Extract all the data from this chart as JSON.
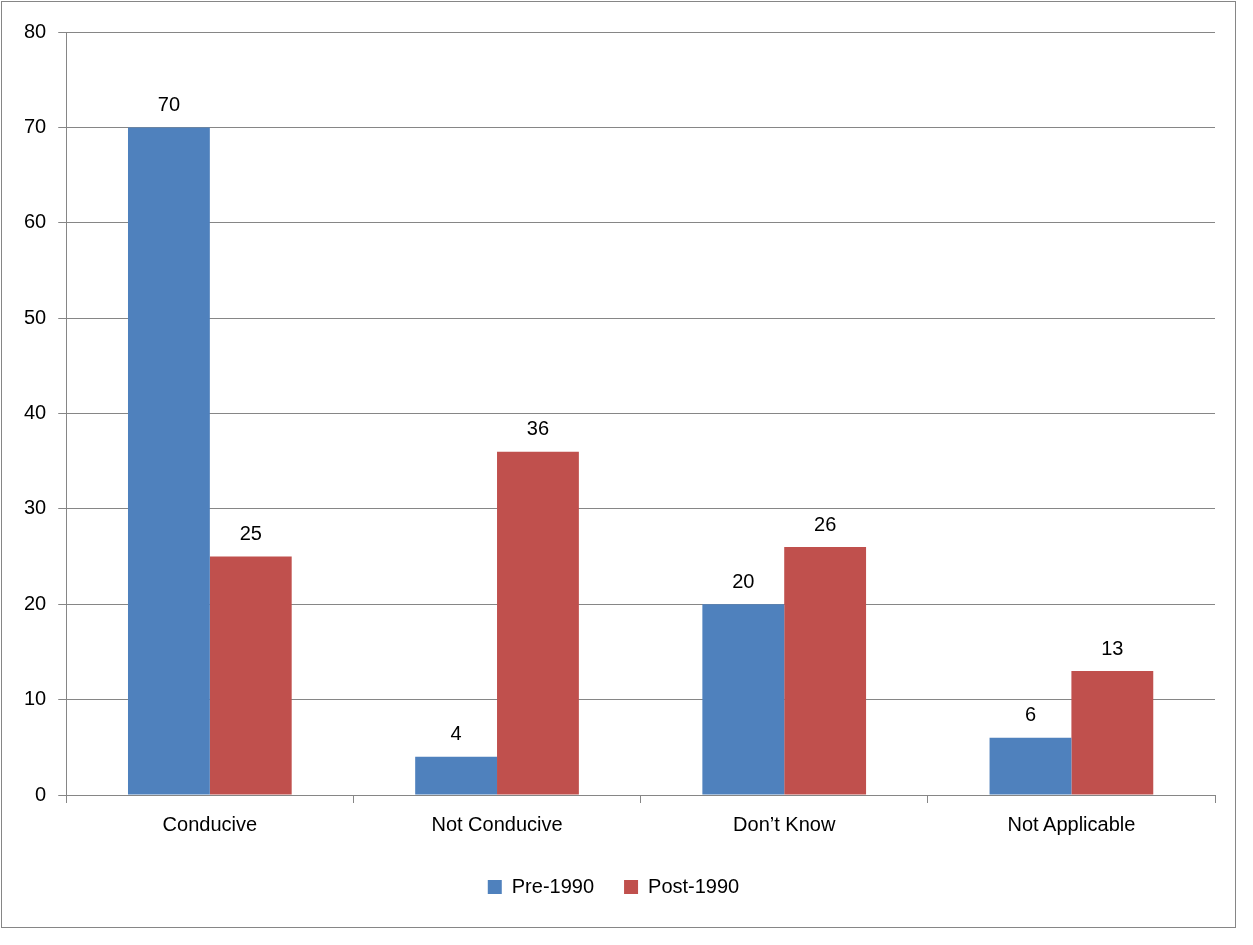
{
  "chart_data": {
    "type": "bar",
    "categories": [
      "Conducive",
      "Not Conducive",
      "Don’t Know",
      "Not Applicable"
    ],
    "series": [
      {
        "name": "Pre-1990",
        "color": "#4f81bd",
        "values": [
          70,
          4,
          20,
          6
        ]
      },
      {
        "name": "Post-1990",
        "color": "#c0504d",
        "values": [
          25,
          36,
          26,
          13
        ]
      }
    ],
    "ylim": [
      0,
      80
    ],
    "yticks": [
      0,
      10,
      20,
      30,
      40,
      50,
      60,
      70,
      80
    ],
    "grid": "y",
    "legend": "bottom",
    "data_labels": true
  }
}
